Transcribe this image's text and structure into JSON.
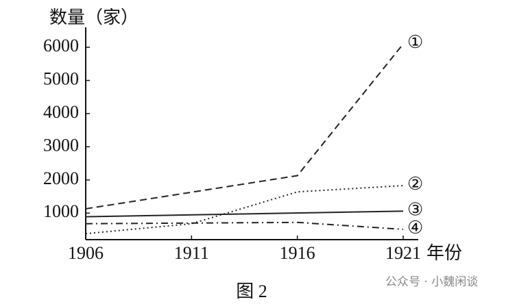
{
  "chart_data": {
    "type": "line",
    "y_label": "数量（家）",
    "x_label": "年份",
    "caption": "图 2",
    "watermark": "公众号 · 小魏闲谈",
    "xlim": [
      1906,
      1921
    ],
    "xticks": [
      1906,
      1911,
      1916,
      1921
    ],
    "ylim": [
      200,
      6600
    ],
    "yticks": [
      1000,
      2000,
      3000,
      4000,
      5000,
      6000
    ],
    "series": [
      {
        "name": "①",
        "color": "#222222",
        "dash": "dashed",
        "x": [
          1906,
          1916,
          1921
        ],
        "values": [
          1130,
          2130,
          6100
        ]
      },
      {
        "name": "②",
        "color": "#222222",
        "dash": "dotted",
        "x": [
          1906,
          1911,
          1916,
          1921
        ],
        "values": [
          380,
          680,
          1640,
          1830
        ]
      },
      {
        "name": "③",
        "color": "#222222",
        "dash": "solid",
        "x": [
          1906,
          1921
        ],
        "values": [
          890,
          1060
        ]
      },
      {
        "name": "④",
        "color": "#222222",
        "dash": "dashdot",
        "x": [
          1906,
          1916,
          1921
        ],
        "values": [
          680,
          720,
          510
        ]
      }
    ]
  }
}
